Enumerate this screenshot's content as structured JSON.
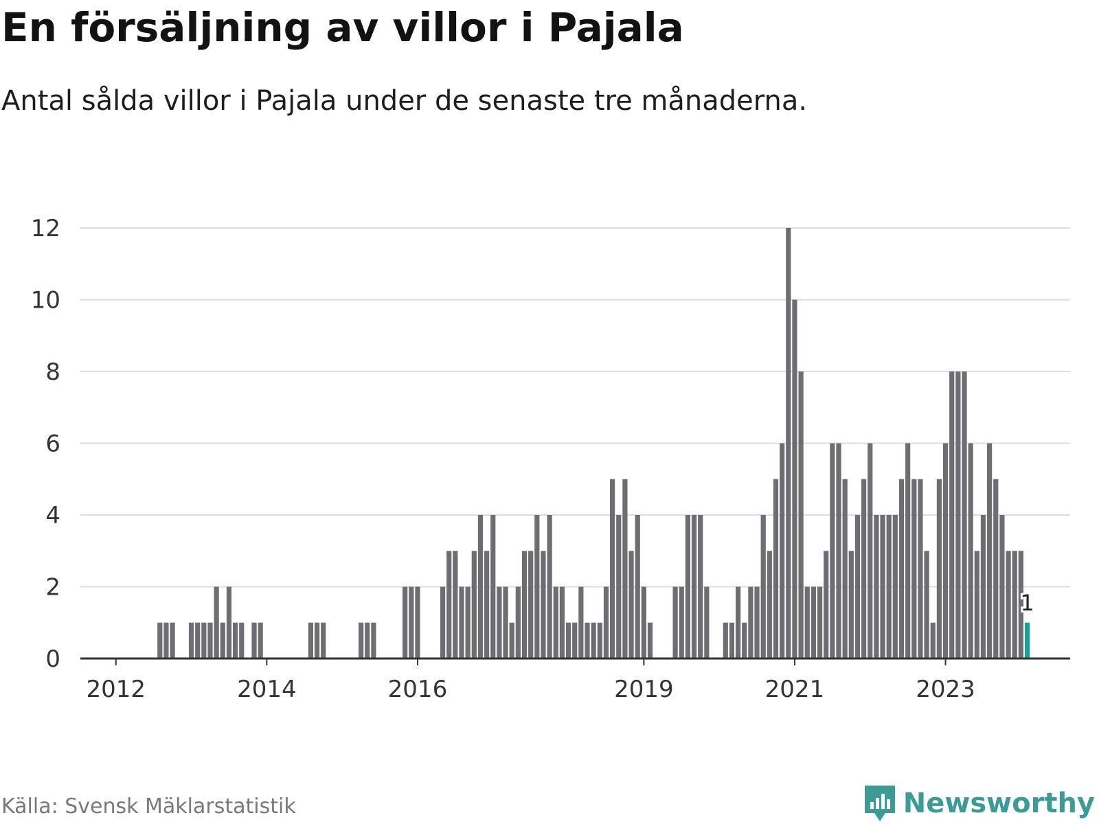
{
  "header": {
    "title": "En försäljning av villor i Pajala",
    "subtitle": "Antal sålda villor i Pajala under de senaste tre månaderna."
  },
  "footer": {
    "source": "Källa: Svensk Mäklarstatistik",
    "brand": "Newsworthy"
  },
  "colors": {
    "bar": "#6e6d72",
    "highlight": "#17a09b",
    "grid": "#dddddd",
    "axis": "#333333",
    "brand": "#3c9c95"
  },
  "chart_data": {
    "type": "bar",
    "title": "En försäljning av villor i Pajala",
    "xlabel": "",
    "ylabel": "",
    "ylim": [
      0,
      12
    ],
    "yticks": [
      0,
      2,
      4,
      6,
      8,
      10,
      12
    ],
    "grid": true,
    "legend": "none",
    "x_start": "2011-07",
    "x_ticks": [
      {
        "label": "2012",
        "index": 6
      },
      {
        "label": "2014",
        "index": 30
      },
      {
        "label": "2016",
        "index": 54
      },
      {
        "label": "2019",
        "index": 90
      },
      {
        "label": "2021",
        "index": 114
      },
      {
        "label": "2023",
        "index": 138
      }
    ],
    "values": [
      0,
      0,
      0,
      0,
      0,
      0,
      0,
      0,
      0,
      0,
      0,
      0,
      0,
      1,
      1,
      1,
      0,
      0,
      1,
      1,
      1,
      1,
      2,
      1,
      2,
      1,
      1,
      0,
      1,
      1,
      0,
      0,
      0,
      0,
      0,
      0,
      0,
      1,
      1,
      1,
      0,
      0,
      0,
      0,
      0,
      1,
      1,
      1,
      0,
      0,
      0,
      0,
      2,
      2,
      2,
      0,
      0,
      0,
      2,
      3,
      3,
      2,
      2,
      3,
      4,
      3,
      4,
      2,
      2,
      1,
      2,
      3,
      3,
      4,
      3,
      4,
      2,
      2,
      1,
      1,
      2,
      1,
      1,
      1,
      2,
      5,
      4,
      5,
      3,
      4,
      2,
      1,
      0,
      0,
      0,
      2,
      2,
      4,
      4,
      4,
      2,
      0,
      0,
      1,
      1,
      2,
      1,
      2,
      2,
      4,
      3,
      5,
      6,
      12,
      10,
      8,
      2,
      2,
      2,
      3,
      6,
      6,
      5,
      3,
      4,
      5,
      6,
      4,
      4,
      4,
      4,
      5,
      6,
      5,
      5,
      3,
      1,
      5,
      6,
      8,
      8,
      8,
      6,
      3,
      4,
      6,
      5,
      4,
      3,
      3,
      3,
      1
    ],
    "highlight_last": true,
    "last_value_label": "1"
  }
}
